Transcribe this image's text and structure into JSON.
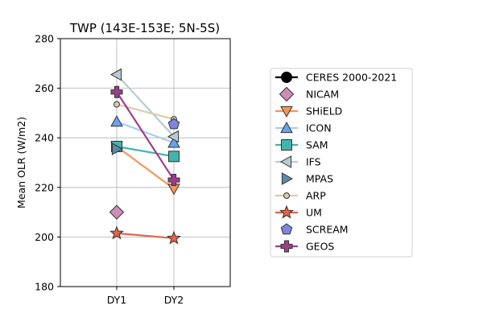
{
  "chart_data": {
    "type": "line",
    "title": "TWP (143E-153E; 5N-5S)",
    "xlabel": "",
    "ylabel": "Mean OLR (W/m2)",
    "categories": [
      "DY1",
      "DY2"
    ],
    "ylim": [
      180,
      280
    ],
    "yticks": [
      180,
      200,
      220,
      240,
      260,
      280
    ],
    "grid": true,
    "legend_position": "right",
    "series": [
      {
        "name": "CERES 2000-2021",
        "values": [
          null,
          null
        ],
        "color": "#000000",
        "marker": "circle",
        "line": true
      },
      {
        "name": "NICAM",
        "values": [
          210,
          null
        ],
        "color": "#d08cb8",
        "marker": "diamond",
        "line": false
      },
      {
        "name": "SHiELD",
        "values": [
          236.5,
          219.5
        ],
        "color": "#f4955a",
        "marker": "triangle-down",
        "line": true
      },
      {
        "name": "ICON",
        "values": [
          246.5,
          238
        ],
        "color": "#a7cdf0",
        "marker": "triangle-up",
        "line": true,
        "marker_color": "#6aa3ec"
      },
      {
        "name": "SAM",
        "values": [
          236.5,
          232.5
        ],
        "color": "#43b3ad",
        "marker": "square",
        "line": true
      },
      {
        "name": "IFS",
        "values": [
          265.5,
          240.5
        ],
        "color": "#b6ccd4",
        "marker": "triangle-left",
        "line": true
      },
      {
        "name": "MPAS",
        "values": [
          235.5,
          null
        ],
        "color": "#5a8aa8",
        "marker": "triangle-right",
        "line": false
      },
      {
        "name": "ARP",
        "values": [
          253.5,
          247.5
        ],
        "color": "#d8cdaa",
        "marker": "small-circle",
        "line": true
      },
      {
        "name": "UM",
        "values": [
          201.5,
          199.5
        ],
        "color": "#e56448",
        "marker": "star",
        "line": true
      },
      {
        "name": "SCREAM",
        "values": [
          null,
          245.5
        ],
        "color": "#7b86e0",
        "marker": "pentagon",
        "line": false
      },
      {
        "name": "GEOS",
        "values": [
          258.5,
          223
        ],
        "color": "#9b3f8a",
        "marker": "plus",
        "line": true
      }
    ]
  }
}
